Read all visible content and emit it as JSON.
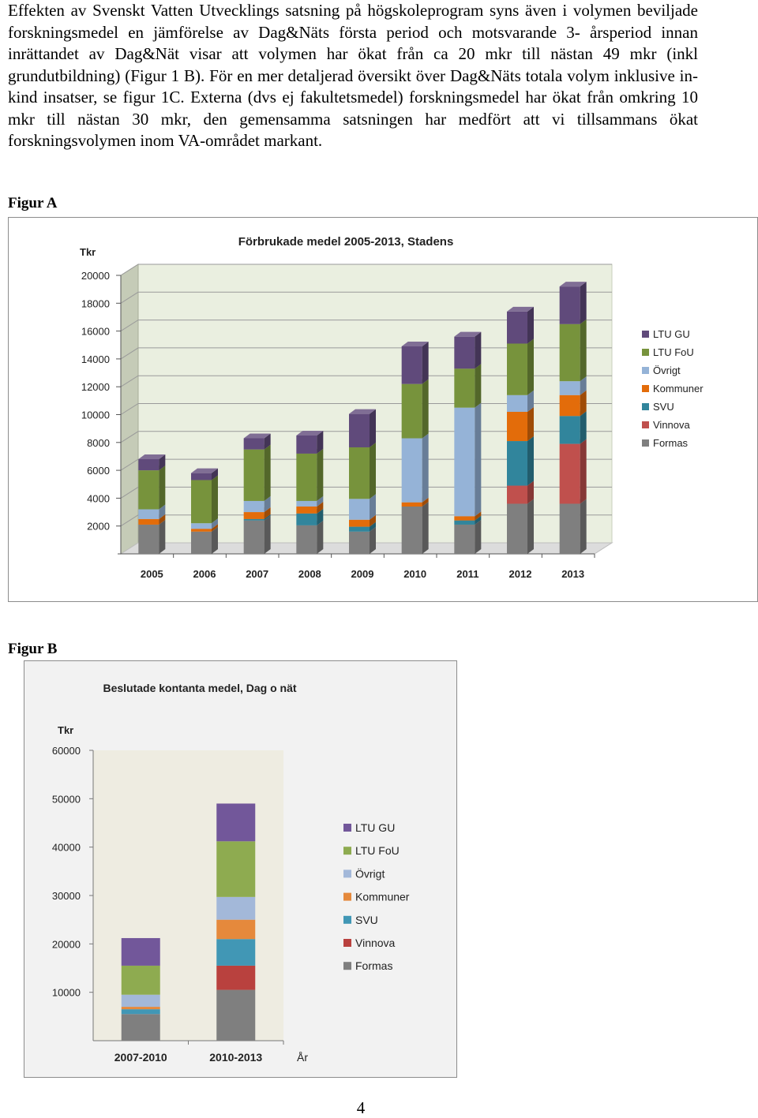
{
  "document": {
    "paragraph": "Effekten av Svenskt Vatten Utvecklings satsning på högskoleprogram syns även i volymen beviljade forskningsmedel en jämförelse av Dag&Näts första period och motsvarande 3- årsperiod innan inrättandet av Dag&Nät visar att volymen har ökat från ca 20 mkr till nästan 49 mkr (inkl grundutbildning) (Figur 1 B). För en mer detaljerad översikt över Dag&Näts totala volym inklusive in-kind insatser, se figur 1C. Externa (dvs ej fakultetsmedel) forskningsmedel har ökat från omkring 10 mkr till nästan 30 mkr, den gemensamma satsningen har medfört att vi tillsammans ökat forskningsvolymen inom VA-området markant.",
    "figure_a_label": "Figur A",
    "figure_b_label": "Figur B",
    "page_number": "4"
  },
  "chart_data": [
    {
      "type": "bar",
      "stacked": true,
      "style": "3d",
      "title": "Förbrukade medel 2005-2013, Stadens",
      "ylabel": "Tkr",
      "xlabel": "",
      "ylim": [
        0,
        20000
      ],
      "yticks": [
        2000,
        4000,
        6000,
        8000,
        10000,
        12000,
        14000,
        16000,
        18000,
        20000
      ],
      "grid": true,
      "legend": "right",
      "categories": [
        "2005",
        "2006",
        "2007",
        "2008",
        "2009",
        "2010",
        "2011",
        "2012",
        "2013"
      ],
      "series": [
        {
          "name": "Formas",
          "color": "#7f7f7f",
          "values": [
            2100,
            1600,
            2400,
            2050,
            1600,
            3400,
            2100,
            3600,
            3600
          ]
        },
        {
          "name": "Vinnova",
          "color": "#c0504d",
          "values": [
            0,
            0,
            0,
            0,
            0,
            0,
            0,
            1300,
            4300
          ]
        },
        {
          "name": "SVU",
          "color": "#31859c",
          "values": [
            0,
            0,
            100,
            850,
            350,
            0,
            300,
            3200,
            2000
          ]
        },
        {
          "name": "Kommuner",
          "color": "#e36c0a",
          "values": [
            400,
            200,
            500,
            500,
            500,
            300,
            300,
            2100,
            1500
          ]
        },
        {
          "name": "Övrigt",
          "color": "#95b3d7",
          "values": [
            700,
            400,
            800,
            400,
            1500,
            4600,
            7800,
            1200,
            1000
          ]
        },
        {
          "name": "LTU FoU",
          "color": "#77933c",
          "values": [
            2800,
            3100,
            3700,
            3400,
            3700,
            3900,
            2800,
            3700,
            4100
          ]
        },
        {
          "name": "LTU GU",
          "color": "#604a7b",
          "values": [
            800,
            500,
            800,
            1300,
            2400,
            2700,
            2300,
            2300,
            2700
          ]
        }
      ]
    },
    {
      "type": "bar",
      "stacked": true,
      "title": "Beslutade kontanta medel, Dag o nät",
      "ylabel": "Tkr",
      "xlabel": "År",
      "ylim": [
        0,
        60000
      ],
      "yticks": [
        10000,
        20000,
        30000,
        40000,
        50000,
        60000
      ],
      "grid": false,
      "legend": "right",
      "categories": [
        "2007-2010",
        "2010-2013"
      ],
      "series": [
        {
          "name": "Formas",
          "color": "#7f7f7f",
          "values": [
            5500,
            10500
          ]
        },
        {
          "name": "Vinnova",
          "color": "#b9413e",
          "values": [
            0,
            5000
          ]
        },
        {
          "name": "SVU",
          "color": "#4197b5",
          "values": [
            1000,
            5500
          ]
        },
        {
          "name": "Kommuner",
          "color": "#e5893c",
          "values": [
            500,
            4000
          ]
        },
        {
          "name": "Övrigt",
          "color": "#a3b8d9",
          "values": [
            2500,
            4700
          ]
        },
        {
          "name": "LTU FoU",
          "color": "#8eab50",
          "values": [
            6000,
            11500
          ]
        },
        {
          "name": "LTU GU",
          "color": "#72579a",
          "values": [
            5700,
            7800
          ]
        }
      ]
    }
  ]
}
